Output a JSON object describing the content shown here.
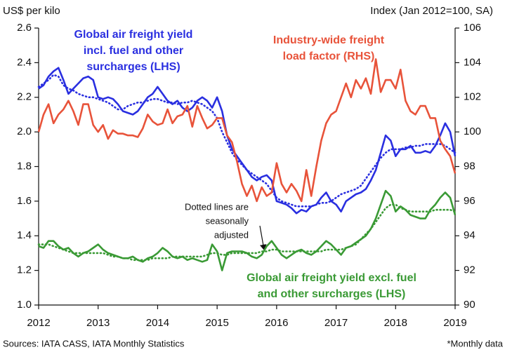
{
  "chart_data": {
    "type": "line",
    "ylabel": "US$ per kilo",
    "y2label": "Index (Jan 2012=100, SA)",
    "source": "Sources: IATA CASS, IATA Monthly Statistics",
    "note": "*Monthly data",
    "annotation": [
      "Dotted lines are",
      "seasonally",
      "adjusted"
    ],
    "xlim": [
      2012,
      2019
    ],
    "xticks": [
      2012,
      2013,
      2014,
      2015,
      2016,
      2017,
      2018,
      2019
    ],
    "ylim": [
      1.0,
      2.6
    ],
    "yticks": [
      {
        "value": 1.0,
        "label": "1.0"
      },
      1.2,
      1.4,
      1.6,
      1.8,
      {
        "value": 2.0,
        "label": "2.0"
      },
      2.2,
      2.4,
      2.6
    ],
    "y2lim": [
      90,
      106
    ],
    "y2ticks": [
      90,
      92,
      94,
      96,
      98,
      100,
      102,
      104,
      106
    ],
    "grid": false,
    "x": [
      2012,
      2012.083,
      2012.167,
      2012.25,
      2012.333,
      2012.417,
      2012.5,
      2012.583,
      2012.667,
      2012.75,
      2012.833,
      2012.917,
      2013,
      2013.083,
      2013.167,
      2013.25,
      2013.333,
      2013.417,
      2013.5,
      2013.583,
      2013.667,
      2013.75,
      2013.833,
      2013.917,
      2014,
      2014.083,
      2014.167,
      2014.25,
      2014.333,
      2014.417,
      2014.5,
      2014.583,
      2014.667,
      2014.75,
      2014.833,
      2014.917,
      2015,
      2015.083,
      2015.167,
      2015.25,
      2015.333,
      2015.417,
      2015.5,
      2015.583,
      2015.667,
      2015.75,
      2015.833,
      2015.917,
      2016,
      2016.083,
      2016.167,
      2016.25,
      2016.333,
      2016.417,
      2016.5,
      2016.583,
      2016.667,
      2016.75,
      2016.833,
      2016.917,
      2017,
      2017.083,
      2017.167,
      2017.25,
      2017.333,
      2017.417,
      2017.5,
      2017.583,
      2017.667,
      2017.75,
      2017.833,
      2017.917,
      2018,
      2018.083,
      2018.167,
      2018.25,
      2018.333,
      2018.417,
      2018.5,
      2018.583,
      2018.667,
      2018.75,
      2018.833,
      2018.917,
      2019
    ],
    "series": [
      {
        "name": [
          "Global air freight yield",
          "incl. fuel and other",
          "surcharges (LHS)"
        ],
        "color": "#2a2fe0",
        "style": "solid",
        "values": [
          2.25,
          2.27,
          2.32,
          2.35,
          2.37,
          2.3,
          2.22,
          2.25,
          2.28,
          2.31,
          2.32,
          2.3,
          2.2,
          2.19,
          2.2,
          2.19,
          2.16,
          2.12,
          2.11,
          2.1,
          2.12,
          2.16,
          2.2,
          2.22,
          2.26,
          2.22,
          2.18,
          2.16,
          2.18,
          2.14,
          2.12,
          2.14,
          2.18,
          2.2,
          2.18,
          2.14,
          2.2,
          2.12,
          1.98,
          1.9,
          1.86,
          1.82,
          1.78,
          1.74,
          1.72,
          1.74,
          1.75,
          1.72,
          1.6,
          1.59,
          1.58,
          1.56,
          1.53,
          1.55,
          1.54,
          1.57,
          1.58,
          1.62,
          1.65,
          1.6,
          1.58,
          1.54,
          1.6,
          1.62,
          1.64,
          1.65,
          1.67,
          1.72,
          1.78,
          1.88,
          1.98,
          1.95,
          1.86,
          1.9,
          1.9,
          1.92,
          1.88,
          1.88,
          1.89,
          1.88,
          1.92,
          1.98,
          2.05,
          2.0,
          1.86
        ]
      },
      {
        "color": "#2a2fe0",
        "style": "dotted",
        "values": [
          2.26,
          2.28,
          2.3,
          2.33,
          2.32,
          2.27,
          2.25,
          2.24,
          2.22,
          2.21,
          2.2,
          2.2,
          2.19,
          2.18,
          2.17,
          2.15,
          2.13,
          2.13,
          2.15,
          2.16,
          2.17,
          2.17,
          2.18,
          2.19,
          2.19,
          2.18,
          2.17,
          2.17,
          2.16,
          2.17,
          2.17,
          2.18,
          2.17,
          2.16,
          2.14,
          2.12,
          2.08,
          2.0,
          1.94,
          1.88,
          1.84,
          1.81,
          1.78,
          1.76,
          1.74,
          1.72,
          1.7,
          1.66,
          1.62,
          1.6,
          1.59,
          1.58,
          1.57,
          1.57,
          1.57,
          1.57,
          1.58,
          1.59,
          1.59,
          1.6,
          1.62,
          1.64,
          1.65,
          1.66,
          1.67,
          1.69,
          1.73,
          1.77,
          1.81,
          1.85,
          1.88,
          1.9,
          1.9,
          1.9,
          1.91,
          1.91,
          1.92,
          1.92,
          1.93,
          1.93,
          1.93,
          1.93,
          1.92,
          1.9,
          1.88
        ]
      },
      {
        "name": [
          "Industry-wide freight",
          "load factor (RHS)"
        ],
        "color": "#e8533a",
        "style": "solid",
        "axis": "y2",
        "values": [
          100.0,
          101.0,
          101.6,
          100.5,
          101.0,
          101.3,
          101.8,
          101.2,
          100.4,
          101.6,
          101.6,
          100.4,
          100.0,
          100.4,
          99.6,
          100.1,
          99.9,
          99.9,
          99.8,
          99.8,
          99.7,
          100.2,
          101.0,
          100.6,
          100.4,
          100.5,
          101.3,
          100.5,
          100.9,
          101.0,
          101.5,
          100.3,
          101.5,
          100.8,
          100.2,
          100.4,
          100.8,
          100.8,
          99.8,
          99.4,
          98.3,
          97.0,
          96.3,
          96.9,
          96.0,
          96.8,
          96.3,
          96.5,
          98.2,
          97.0,
          96.5,
          97.0,
          96.6,
          96.0,
          97.8,
          96.3,
          98.0,
          99.5,
          100.5,
          101.0,
          101.2,
          102.0,
          102.8,
          102.0,
          103.0,
          102.5,
          103.1,
          102.2,
          104.2,
          102.3,
          103.0,
          103.0,
          102.5,
          103.6,
          101.8,
          101.2,
          101.0,
          101.5,
          101.5,
          100.8,
          100.8,
          99.5,
          99.0,
          98.6,
          97.6
        ]
      },
      {
        "name": [
          "Global air freight yield excl. fuel",
          "and other surcharges (LHS)"
        ],
        "color": "#3a9a35",
        "style": "solid",
        "values": [
          1.34,
          1.33,
          1.37,
          1.37,
          1.34,
          1.32,
          1.33,
          1.3,
          1.28,
          1.3,
          1.31,
          1.33,
          1.35,
          1.32,
          1.3,
          1.29,
          1.28,
          1.27,
          1.27,
          1.28,
          1.26,
          1.25,
          1.27,
          1.28,
          1.3,
          1.33,
          1.31,
          1.28,
          1.27,
          1.28,
          1.26,
          1.27,
          1.26,
          1.25,
          1.26,
          1.35,
          1.31,
          1.2,
          1.3,
          1.31,
          1.31,
          1.31,
          1.3,
          1.28,
          1.27,
          1.29,
          1.34,
          1.37,
          1.33,
          1.29,
          1.27,
          1.29,
          1.31,
          1.32,
          1.3,
          1.29,
          1.31,
          1.34,
          1.37,
          1.35,
          1.32,
          1.29,
          1.33,
          1.34,
          1.36,
          1.38,
          1.4,
          1.44,
          1.5,
          1.58,
          1.66,
          1.63,
          1.54,
          1.57,
          1.55,
          1.52,
          1.51,
          1.5,
          1.5,
          1.55,
          1.58,
          1.62,
          1.65,
          1.62,
          1.52
        ]
      },
      {
        "color": "#3a9a35",
        "style": "dotted",
        "values": [
          1.35,
          1.35,
          1.35,
          1.34,
          1.33,
          1.32,
          1.31,
          1.3,
          1.3,
          1.3,
          1.3,
          1.3,
          1.3,
          1.3,
          1.29,
          1.28,
          1.28,
          1.27,
          1.27,
          1.26,
          1.26,
          1.26,
          1.26,
          1.27,
          1.27,
          1.27,
          1.27,
          1.28,
          1.28,
          1.28,
          1.28,
          1.28,
          1.28,
          1.28,
          1.29,
          1.3,
          1.3,
          1.29,
          1.29,
          1.3,
          1.3,
          1.3,
          1.3,
          1.3,
          1.3,
          1.31,
          1.31,
          1.32,
          1.32,
          1.31,
          1.31,
          1.31,
          1.31,
          1.31,
          1.31,
          1.31,
          1.31,
          1.31,
          1.32,
          1.32,
          1.32,
          1.32,
          1.33,
          1.34,
          1.35,
          1.38,
          1.41,
          1.44,
          1.48,
          1.52,
          1.56,
          1.58,
          1.58,
          1.56,
          1.55,
          1.54,
          1.54,
          1.54,
          1.54,
          1.54,
          1.55,
          1.55,
          1.55,
          1.55,
          1.54
        ]
      }
    ]
  }
}
